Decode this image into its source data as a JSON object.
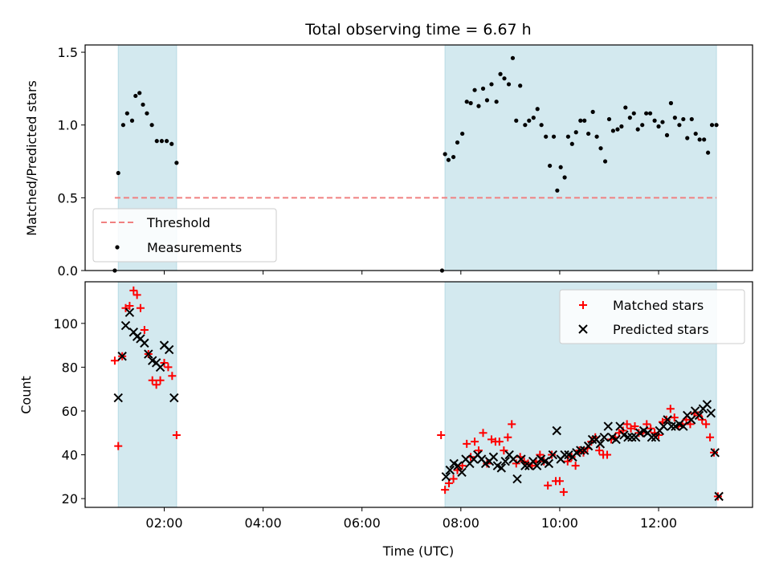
{
  "chart_data": [
    {
      "type": "scatter",
      "title": "Total observing time = 6.67 h",
      "xlabel": "",
      "ylabel": "Matched/Predicted stars",
      "x_unit": "hours (UTC)",
      "xlim": [
        0.4,
        13.9
      ],
      "ylim": [
        0,
        1.55
      ],
      "yticks": [
        0.0,
        0.5,
        1.0,
        1.5
      ],
      "ytick_labels": [
        "0.0",
        "0.5",
        "1.0",
        "1.5"
      ],
      "xticks": [
        2,
        4,
        6,
        8,
        10,
        12
      ],
      "show_xtick_labels": false,
      "grid": false,
      "shaded_intervals": [
        [
          1.07,
          2.25
        ],
        [
          7.68,
          13.17
        ]
      ],
      "shade_color": "#d3e9ef",
      "legend_position": "lower-left",
      "threshold": {
        "name": "Threshold",
        "value": 0.5,
        "x_range": [
          1.0,
          13.17
        ],
        "color": "#f08080",
        "style": "dashed"
      },
      "series": [
        {
          "name": "Measurements",
          "color": "#000000",
          "marker": "dot",
          "points": [
            [
              1.0,
              0.0
            ],
            [
              1.07,
              0.67
            ],
            [
              1.17,
              1.0
            ],
            [
              1.25,
              1.08
            ],
            [
              1.35,
              1.03
            ],
            [
              1.42,
              1.2
            ],
            [
              1.5,
              1.22
            ],
            [
              1.57,
              1.14
            ],
            [
              1.65,
              1.08
            ],
            [
              1.75,
              1.0
            ],
            [
              1.85,
              0.89
            ],
            [
              1.95,
              0.89
            ],
            [
              2.05,
              0.89
            ],
            [
              2.15,
              0.87
            ],
            [
              2.25,
              0.74
            ],
            [
              7.62,
              0.0
            ],
            [
              7.68,
              0.8
            ],
            [
              7.75,
              0.76
            ],
            [
              7.85,
              0.78
            ],
            [
              7.93,
              0.88
            ],
            [
              8.03,
              0.94
            ],
            [
              8.12,
              1.16
            ],
            [
              8.2,
              1.15
            ],
            [
              8.28,
              1.24
            ],
            [
              8.36,
              1.13
            ],
            [
              8.45,
              1.25
            ],
            [
              8.53,
              1.17
            ],
            [
              8.62,
              1.28
            ],
            [
              8.72,
              1.16
            ],
            [
              8.8,
              1.35
            ],
            [
              8.88,
              1.32
            ],
            [
              8.97,
              1.28
            ],
            [
              9.05,
              1.46
            ],
            [
              9.12,
              1.03
            ],
            [
              9.2,
              1.27
            ],
            [
              9.3,
              1.0
            ],
            [
              9.38,
              1.03
            ],
            [
              9.47,
              1.05
            ],
            [
              9.55,
              1.11
            ],
            [
              9.63,
              1.0
            ],
            [
              9.72,
              0.92
            ],
            [
              9.8,
              0.72
            ],
            [
              9.88,
              0.92
            ],
            [
              9.95,
              0.55
            ],
            [
              10.02,
              0.71
            ],
            [
              10.1,
              0.64
            ],
            [
              10.17,
              0.92
            ],
            [
              10.25,
              0.87
            ],
            [
              10.33,
              0.95
            ],
            [
              10.42,
              1.03
            ],
            [
              10.5,
              1.03
            ],
            [
              10.58,
              0.94
            ],
            [
              10.67,
              1.09
            ],
            [
              10.75,
              0.92
            ],
            [
              10.83,
              0.84
            ],
            [
              10.92,
              0.75
            ],
            [
              11.0,
              1.04
            ],
            [
              11.08,
              0.96
            ],
            [
              11.17,
              0.97
            ],
            [
              11.25,
              0.99
            ],
            [
              11.33,
              1.12
            ],
            [
              11.42,
              1.05
            ],
            [
              11.5,
              1.08
            ],
            [
              11.58,
              0.97
            ],
            [
              11.67,
              1.0
            ],
            [
              11.75,
              1.08
            ],
            [
              11.83,
              1.08
            ],
            [
              11.92,
              1.03
            ],
            [
              12.0,
              0.99
            ],
            [
              12.08,
              1.02
            ],
            [
              12.17,
              0.93
            ],
            [
              12.25,
              1.15
            ],
            [
              12.33,
              1.05
            ],
            [
              12.42,
              1.0
            ],
            [
              12.5,
              1.04
            ],
            [
              12.58,
              0.91
            ],
            [
              12.67,
              1.04
            ],
            [
              12.75,
              0.94
            ],
            [
              12.83,
              0.9
            ],
            [
              12.92,
              0.9
            ],
            [
              13.0,
              0.81
            ],
            [
              13.08,
              1.0
            ],
            [
              13.17,
              1.0
            ]
          ]
        }
      ]
    },
    {
      "type": "scatter",
      "title": "",
      "xlabel": "Time (UTC)",
      "ylabel": "Count",
      "x_unit": "hours (UTC)",
      "xlim": [
        0.4,
        13.9
      ],
      "ylim": [
        16,
        119
      ],
      "yticks": [
        20,
        40,
        60,
        80,
        100
      ],
      "ytick_labels": [
        "20",
        "40",
        "60",
        "80",
        "100"
      ],
      "xticks": [
        2,
        4,
        6,
        8,
        10,
        12
      ],
      "xtick_labels": [
        "02:00",
        "04:00",
        "06:00",
        "08:00",
        "10:00",
        "12:00"
      ],
      "grid": false,
      "shaded_intervals": [
        [
          1.07,
          2.25
        ],
        [
          7.68,
          13.17
        ]
      ],
      "shade_color": "#d3e9ef",
      "legend_position": "top-right",
      "series": [
        {
          "name": "Matched stars",
          "color": "#ff0000",
          "marker": "plus",
          "points": [
            [
              1.0,
              83
            ],
            [
              1.07,
              44
            ],
            [
              1.15,
              85
            ],
            [
              1.22,
              107
            ],
            [
              1.3,
              108
            ],
            [
              1.38,
              115
            ],
            [
              1.45,
              113
            ],
            [
              1.52,
              107
            ],
            [
              1.6,
              97
            ],
            [
              1.68,
              86
            ],
            [
              1.76,
              74
            ],
            [
              1.84,
              72
            ],
            [
              1.92,
              74
            ],
            [
              2.0,
              82
            ],
            [
              2.08,
              80
            ],
            [
              2.16,
              76
            ],
            [
              2.25,
              49
            ],
            [
              7.6,
              49
            ],
            [
              7.68,
              24
            ],
            [
              7.76,
              27
            ],
            [
              7.85,
              29
            ],
            [
              7.93,
              33
            ],
            [
              8.03,
              35
            ],
            [
              8.12,
              45
            ],
            [
              8.2,
              39
            ],
            [
              8.28,
              46
            ],
            [
              8.36,
              42
            ],
            [
              8.45,
              50
            ],
            [
              8.53,
              36
            ],
            [
              8.62,
              47
            ],
            [
              8.7,
              46
            ],
            [
              8.78,
              46
            ],
            [
              8.87,
              42
            ],
            [
              8.95,
              48
            ],
            [
              9.03,
              54
            ],
            [
              9.12,
              36
            ],
            [
              9.2,
              39
            ],
            [
              9.28,
              37
            ],
            [
              9.36,
              36
            ],
            [
              9.44,
              35
            ],
            [
              9.52,
              37
            ],
            [
              9.6,
              40
            ],
            [
              9.68,
              37
            ],
            [
              9.76,
              26
            ],
            [
              9.84,
              40
            ],
            [
              9.92,
              28
            ],
            [
              10.0,
              28
            ],
            [
              10.08,
              23
            ],
            [
              10.16,
              37
            ],
            [
              10.24,
              39
            ],
            [
              10.32,
              35
            ],
            [
              10.4,
              42
            ],
            [
              10.48,
              41
            ],
            [
              10.56,
              43
            ],
            [
              10.64,
              46
            ],
            [
              10.72,
              48
            ],
            [
              10.8,
              42
            ],
            [
              10.88,
              40
            ],
            [
              10.96,
              40
            ],
            [
              11.04,
              47
            ],
            [
              11.12,
              48
            ],
            [
              11.2,
              50
            ],
            [
              11.28,
              51
            ],
            [
              11.36,
              54
            ],
            [
              11.44,
              52
            ],
            [
              11.52,
              53
            ],
            [
              11.6,
              50
            ],
            [
              11.68,
              50
            ],
            [
              11.76,
              54
            ],
            [
              11.84,
              52
            ],
            [
              11.92,
              50
            ],
            [
              12.0,
              49
            ],
            [
              12.08,
              55
            ],
            [
              12.16,
              56
            ],
            [
              12.24,
              61
            ],
            [
              12.32,
              57
            ],
            [
              12.4,
              53
            ],
            [
              12.48,
              54
            ],
            [
              12.56,
              56
            ],
            [
              12.64,
              54
            ],
            [
              12.72,
              59
            ],
            [
              12.8,
              58
            ],
            [
              12.88,
              56
            ],
            [
              12.96,
              54
            ],
            [
              13.04,
              48
            ],
            [
              13.12,
              41
            ],
            [
              13.2,
              21
            ]
          ]
        },
        {
          "name": "Predicted stars",
          "color": "#000000",
          "marker": "x",
          "points": [
            [
              1.07,
              66
            ],
            [
              1.15,
              85
            ],
            [
              1.22,
              99
            ],
            [
              1.3,
              105
            ],
            [
              1.38,
              96
            ],
            [
              1.45,
              94
            ],
            [
              1.52,
              93
            ],
            [
              1.6,
              91
            ],
            [
              1.68,
              86
            ],
            [
              1.76,
              83
            ],
            [
              1.84,
              82
            ],
            [
              1.92,
              80
            ],
            [
              2.0,
              90
            ],
            [
              2.1,
              88
            ],
            [
              2.2,
              66
            ],
            [
              7.7,
              30
            ],
            [
              7.78,
              33
            ],
            [
              7.86,
              36
            ],
            [
              7.94,
              35
            ],
            [
              8.02,
              32
            ],
            [
              8.1,
              38
            ],
            [
              8.18,
              36
            ],
            [
              8.26,
              38
            ],
            [
              8.34,
              40
            ],
            [
              8.42,
              38
            ],
            [
              8.5,
              36
            ],
            [
              8.58,
              37
            ],
            [
              8.66,
              39
            ],
            [
              8.74,
              35
            ],
            [
              8.82,
              34
            ],
            [
              8.9,
              37
            ],
            [
              8.98,
              40
            ],
            [
              9.06,
              38
            ],
            [
              9.14,
              29
            ],
            [
              9.22,
              38
            ],
            [
              9.3,
              35
            ],
            [
              9.38,
              35
            ],
            [
              9.46,
              37
            ],
            [
              9.54,
              35
            ],
            [
              9.62,
              38
            ],
            [
              9.7,
              37
            ],
            [
              9.78,
              36
            ],
            [
              9.86,
              40
            ],
            [
              9.94,
              51
            ],
            [
              10.02,
              38
            ],
            [
              10.1,
              40
            ],
            [
              10.18,
              40
            ],
            [
              10.26,
              39
            ],
            [
              10.34,
              41
            ],
            [
              10.42,
              42
            ],
            [
              10.5,
              42
            ],
            [
              10.58,
              44
            ],
            [
              10.66,
              47
            ],
            [
              10.74,
              47
            ],
            [
              10.82,
              45
            ],
            [
              10.9,
              48
            ],
            [
              10.98,
              53
            ],
            [
              11.06,
              48
            ],
            [
              11.14,
              47
            ],
            [
              11.22,
              53
            ],
            [
              11.3,
              49
            ],
            [
              11.38,
              48
            ],
            [
              11.46,
              48
            ],
            [
              11.54,
              48
            ],
            [
              11.62,
              50
            ],
            [
              11.7,
              51
            ],
            [
              11.78,
              50
            ],
            [
              11.86,
              48
            ],
            [
              11.94,
              48
            ],
            [
              12.02,
              51
            ],
            [
              12.1,
              53
            ],
            [
              12.18,
              56
            ],
            [
              12.26,
              53
            ],
            [
              12.34,
              53
            ],
            [
              12.42,
              54
            ],
            [
              12.5,
              53
            ],
            [
              12.58,
              58
            ],
            [
              12.66,
              56
            ],
            [
              12.74,
              60
            ],
            [
              12.82,
              58
            ],
            [
              12.9,
              61
            ],
            [
              12.98,
              63
            ],
            [
              13.06,
              59
            ],
            [
              13.14,
              41
            ],
            [
              13.22,
              21
            ]
          ]
        }
      ]
    }
  ]
}
